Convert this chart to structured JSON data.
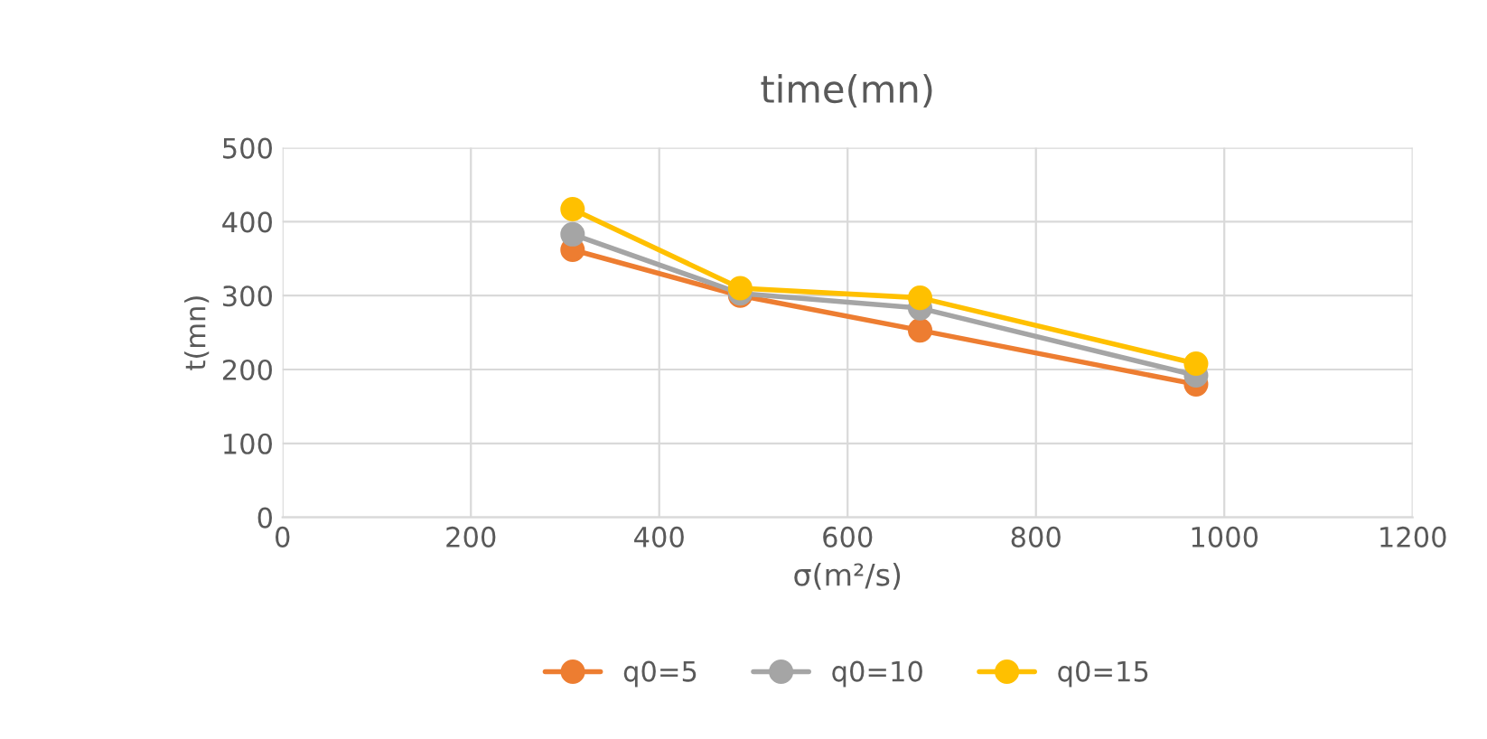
{
  "chart_data": {
    "type": "line",
    "title": "time(mn)",
    "xlabel": "σ(m²/s)",
    "ylabel": "t(mn)",
    "x": [
      308,
      486,
      677,
      970
    ],
    "series": [
      {
        "name": "q0=5",
        "color": "#ed7d31",
        "values": [
          362,
          300,
          253,
          180
        ]
      },
      {
        "name": "q0=10",
        "color": "#a5a5a5",
        "values": [
          383,
          303,
          283,
          192
        ]
      },
      {
        "name": "q0=15",
        "color": "#ffc000",
        "values": [
          417,
          310,
          297,
          208
        ]
      }
    ],
    "xlim": [
      0,
      1200
    ],
    "xticks": [
      0,
      200,
      400,
      600,
      800,
      1000,
      1200
    ],
    "ylim": [
      0,
      500
    ],
    "yticks": [
      0,
      100,
      200,
      300,
      400,
      500
    ],
    "grid": true,
    "legend": "bottom",
    "marker": "circle",
    "line_style": "solid"
  }
}
